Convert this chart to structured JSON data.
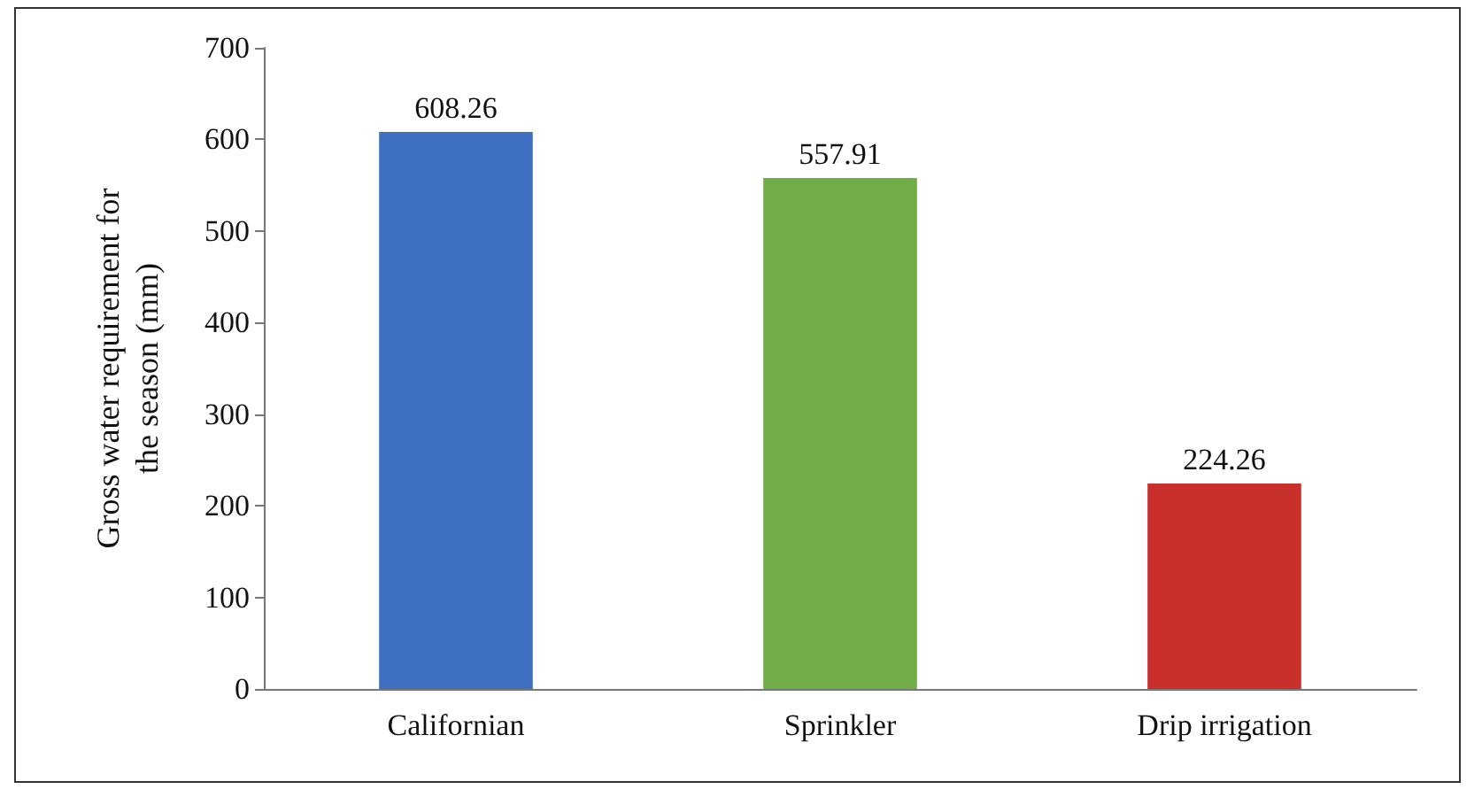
{
  "chart_data": {
    "type": "bar",
    "ylabel": "Gross water requirement for the season (mm)",
    "categories": [
      "Californian",
      "Sprinkler",
      "Drip irrigation"
    ],
    "values": [
      608.26,
      557.91,
      224.26
    ],
    "colors": [
      "#3f6fc1",
      "#70ad47",
      "#c9302c"
    ],
    "ylim": [
      0,
      700
    ],
    "yticks": [
      0,
      100,
      200,
      300,
      400,
      500,
      600,
      700
    ],
    "grid": false,
    "data_labels": true
  }
}
